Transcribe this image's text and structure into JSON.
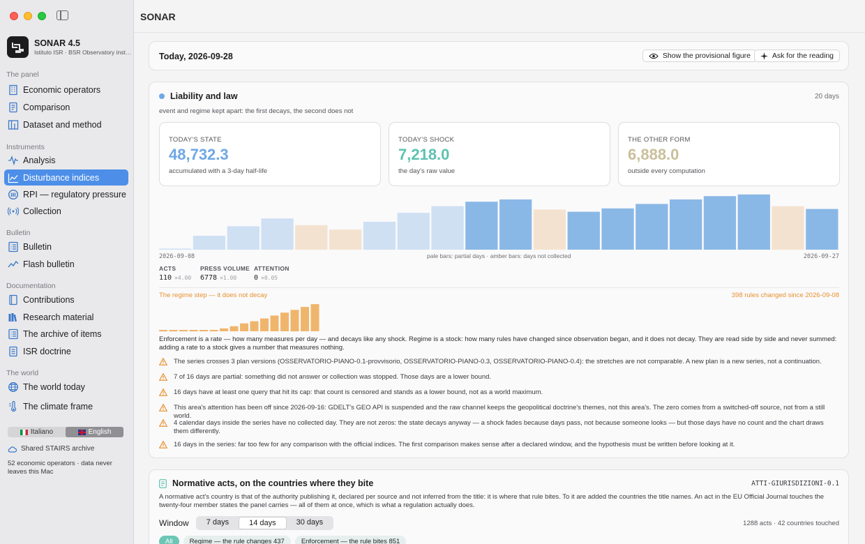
{
  "app": {
    "name": "SONAR 4.5",
    "subtitle": "Istituto ISR · BSR Observatory instr...",
    "window_title": "SONAR"
  },
  "sidebar": {
    "sections": [
      {
        "title": "The panel",
        "items": [
          {
            "label": "Economic operators",
            "icon": "building-icon"
          },
          {
            "label": "Comparison",
            "icon": "document-icon"
          },
          {
            "label": "Dataset and method",
            "icon": "columns-icon"
          }
        ]
      },
      {
        "title": "Instruments",
        "items": [
          {
            "label": "Analysis",
            "icon": "waveform-icon"
          },
          {
            "label": "Disturbance indices",
            "icon": "line-chart-icon",
            "active": true
          },
          {
            "label": "RPI — regulatory pressure",
            "icon": "gauge-icon"
          },
          {
            "label": "Collection",
            "icon": "antenna-icon"
          }
        ]
      },
      {
        "title": "Bulletin",
        "items": [
          {
            "label": "Bulletin",
            "icon": "list-icon"
          },
          {
            "label": "Flash bulletin",
            "icon": "trend-icon"
          }
        ]
      },
      {
        "title": "Documentation",
        "items": [
          {
            "label": "Contributions",
            "icon": "book-icon"
          },
          {
            "label": "Research material",
            "icon": "books-icon"
          },
          {
            "label": "The archive of items",
            "icon": "list-icon"
          },
          {
            "label": "ISR doctrine",
            "icon": "doc-icon"
          }
        ]
      },
      {
        "title": "The world",
        "items": [
          {
            "label": "The world today",
            "icon": "globe-icon"
          },
          {
            "label": "The climate frame",
            "icon": "climate-icon"
          }
        ]
      }
    ],
    "languages": [
      {
        "label": "Italiano",
        "selected": false
      },
      {
        "label": "English",
        "selected": true
      }
    ],
    "archive_label": "Shared STAIRS archive",
    "footnote": "52 economic operators · data never leaves this Mac"
  },
  "today": {
    "label": "Today, 2026-09-28",
    "show_provisional_label": "Show the provisional figure",
    "ask_reading_label": "Ask for the reading"
  },
  "liability": {
    "title": "Liability and law",
    "days": "20 days",
    "subtitle": "event and regime kept apart: the first decays, the second does not",
    "stats": [
      {
        "label": "TODAY'S STATE",
        "value": "48,732.3",
        "note": "accumulated with a 3-day half-life",
        "color": "#6ea8e4"
      },
      {
        "label": "TODAY'S SHOCK",
        "value": "7,218.0",
        "note": "the day's raw value",
        "color": "#5cc2b0"
      },
      {
        "label": "THE OTHER FORM",
        "value": "6,888.0",
        "note": "outside every computation",
        "color": "#c9bf9a"
      }
    ],
    "chart_start": "2026-09-08",
    "chart_end": "2026-09-27",
    "chart_caption": "pale bars: partial days · amber bars: days not collected",
    "metrics": [
      {
        "label": "ACTS",
        "value": "110",
        "weight": "×4.00"
      },
      {
        "label": "PRESS VOLUME",
        "value": "6778",
        "weight": "×1.00"
      },
      {
        "label": "ATTENTION",
        "value": "0",
        "weight": "×0.05"
      }
    ],
    "regime_title": "The regime step — it does not decay",
    "regime_right": "398 rules changed since 2026-09-08",
    "paragraph": "Enforcement is a rate — how many measures per day — and decays like any shock. Regime is a stock: how many rules have changed since observation began, and it does not decay. They are read side by side and never summed: adding a rate to a stock gives a number that measures nothing.",
    "warnings": [
      "The series crosses 3 plan versions (OSSERVATORIO-PIANO-0.1-provvisorio, OSSERVATORIO-PIANO-0.3, OSSERVATORIO-PIANO-0.4): the stretches are not comparable. A new plan is a new series, not a continuation.",
      "7 of 16 days are partial: something did not answer or collection was stopped. Those days are a lower bound.",
      "16 days have at least one query that hit its cap: that count is censored and stands as a lower bound, not as a world maximum.",
      "This area's attention has been off since 2026-09-16: GDELT's GEO API is suspended and the raw channel keeps the geopolitical doctrine's themes, not this area's. The zero comes from a switched-off source, not from a still world.",
      "4 calendar days inside the series have no collected day. They are not zeros: the state decays anyway — a shock fades because days pass, not because someone looks — but those days have no count and the chart draws them differently.",
      "16 days in the series: far too few for any comparison with the official indices. The first comparison makes sense after a declared window, and the hypothesis must be written before looking at it."
    ]
  },
  "chart_data": [
    {
      "type": "bar",
      "categories": [
        "2026-09-08",
        "2026-09-09",
        "2026-09-10",
        "2026-09-11",
        "2026-09-12",
        "2026-09-13",
        "2026-09-14",
        "2026-09-15",
        "2026-09-16",
        "2026-09-17",
        "2026-09-18",
        "2026-09-19",
        "2026-09-20",
        "2026-09-21",
        "2026-09-22",
        "2026-09-23",
        "2026-09-24",
        "2026-09-25",
        "2026-09-26",
        "2026-09-27"
      ],
      "values": [
        2,
        25,
        42,
        56,
        44,
        36,
        50,
        66,
        78,
        86,
        90,
        72,
        68,
        74,
        82,
        90,
        96,
        99,
        78,
        73
      ],
      "status": [
        "partial",
        "partial",
        "partial",
        "partial",
        "missing",
        "missing",
        "partial",
        "partial",
        "partial",
        "full",
        "full",
        "missing",
        "full",
        "full",
        "full",
        "full",
        "full",
        "full",
        "missing",
        "full"
      ],
      "colors": {
        "full": "#8ab8e6",
        "partial": "#cfe0f3",
        "missing": "#f4e2d0"
      },
      "ylim": [
        0,
        100
      ],
      "xlabel": "",
      "ylabel": ""
    },
    {
      "type": "bar",
      "values": [
        2,
        2,
        2,
        2,
        2,
        2,
        4,
        7,
        11,
        14,
        18,
        22,
        26,
        30,
        34,
        38
      ],
      "color": "#f0b56c",
      "ylim": [
        0,
        40
      ]
    }
  ],
  "normative": {
    "title": "Normative acts, on the countries where they bite",
    "code": "ATTI-GIURISDIZIONI-0.1",
    "paragraph": "A normative act's country is that of the authority publishing it, declared per source and not inferred from the title: it is where that rule bites. To it are added the countries the title names. An act in the EU Official Journal touches the twenty-four member states the panel carries — all of them at once, which is what a regulation actually does.",
    "window_label": "Window",
    "windows": [
      {
        "label": "7 days",
        "selected": false
      },
      {
        "label": "14 days",
        "selected": true
      },
      {
        "label": "30 days",
        "selected": false
      }
    ],
    "acts_count": "1288 acts · 42 countries touched",
    "chips": [
      {
        "label": "All",
        "selected": true
      },
      {
        "label": "Regime — the rule changes 437",
        "selected": false
      },
      {
        "label": "Enforcement — the rule bites 851",
        "selected": false
      }
    ]
  }
}
